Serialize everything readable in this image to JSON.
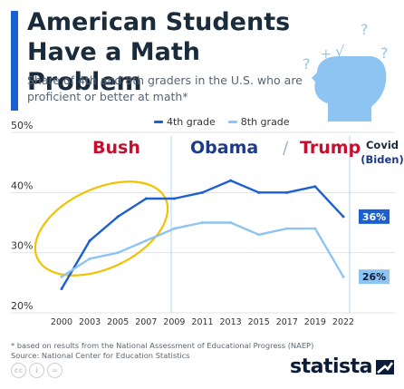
{
  "title": "American Students Have a Math Problem",
  "subtitle": "Share of 4th and 8th graders in the U.S. who are proficient or better at math*",
  "footnote_line1": "* based on results from the National Assessment of Educational Progress (NAEP)",
  "footnote_line2": "Source: National Center for Education Statistics",
  "brand": "statista",
  "cc_icons": [
    "cc",
    "i",
    "="
  ],
  "eras": {
    "bush": "Bush",
    "obama": "Obama",
    "separator": "/",
    "trump": "Trump",
    "covid": "Covid",
    "biden": "(Biden)"
  },
  "colors": {
    "accent": "#1b5fd1",
    "grade4": "#1b5fd1",
    "grade8": "#8ec4f2",
    "label4_bg": "#1b5fd1",
    "label8_bg": "#8ec4f2",
    "republican": "#c8102e",
    "democrat": "#1e3a8a",
    "highlight_ellipse": "#f2c200",
    "icon": "#8ec4f2"
  },
  "icon": "thinking-head-with-math-symbols-icon",
  "chart_data": {
    "type": "line",
    "x": [
      "2000",
      "2003",
      "2005",
      "2007",
      "2009",
      "2011",
      "2013",
      "2015",
      "2017",
      "2019",
      "2022"
    ],
    "series": [
      {
        "name": "4th grade",
        "values": [
          24,
          32,
          36,
          39,
          39,
          40,
          42,
          40,
          40,
          41,
          36
        ]
      },
      {
        "name": "8th grade",
        "values": [
          26,
          29,
          30,
          32,
          34,
          35,
          35,
          33,
          34,
          34,
          26
        ]
      }
    ],
    "end_labels": [
      "36%",
      "26%"
    ],
    "ylim": [
      20,
      50
    ],
    "yticks": [
      "20%",
      "30%",
      "40%",
      "50%"
    ],
    "grid": true,
    "legend": "top"
  }
}
